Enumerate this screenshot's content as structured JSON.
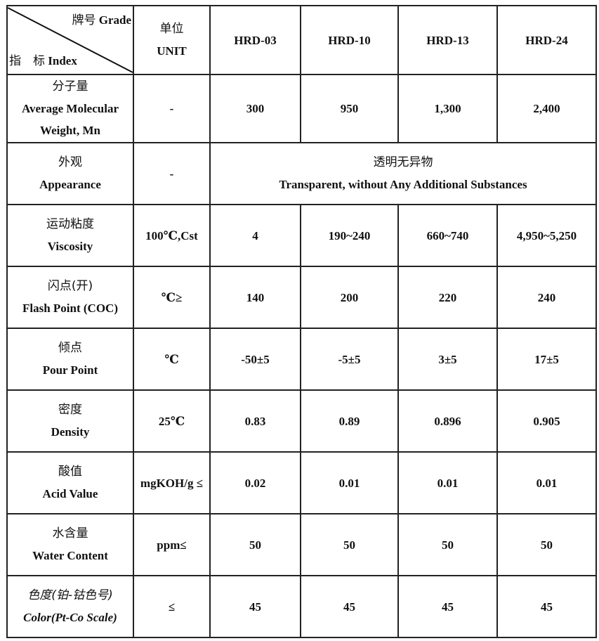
{
  "header": {
    "corner_top": {
      "zh": "牌号",
      "en": "Grade"
    },
    "corner_bottom": {
      "zh": "指　标",
      "en": "Index"
    },
    "unit": {
      "zh": "单位",
      "en": "UNIT"
    },
    "grades": [
      "HRD-03",
      "HRD-10",
      "HRD-13",
      "HRD-24"
    ]
  },
  "rows": [
    {
      "zh": "分子量",
      "en": "Average Molecular Weight, Mn",
      "unit": "-",
      "values": [
        "300",
        "950",
        "1,300",
        "2,400"
      ]
    },
    {
      "zh": "外观",
      "en": "Appearance",
      "unit": "-",
      "merged": {
        "zh": "透明无异物",
        "en": "Transparent, without Any Additional Substances"
      }
    },
    {
      "zh": "运动粘度",
      "en": "Viscosity",
      "unit": "100℃,Cst",
      "values": [
        "4",
        "190~240",
        "660~740",
        "4,950~5,250"
      ]
    },
    {
      "zh": "闪点(开)",
      "en": "Flash Point (COC)",
      "unit": "℃≥",
      "values": [
        "140",
        "200",
        "220",
        "240"
      ]
    },
    {
      "zh": "倾点",
      "en": "Pour Point",
      "unit": "℃",
      "values": [
        "-50±5",
        "-5±5",
        "3±5",
        "17±5"
      ]
    },
    {
      "zh": "密度",
      "en": "Density",
      "unit": "25℃",
      "values": [
        "0.83",
        "0.89",
        "0.896",
        "0.905"
      ]
    },
    {
      "zh": "酸值",
      "en": "Acid Value",
      "unit": "mgKOH/g ≤",
      "values": [
        "0.02",
        "0.01",
        "0.01",
        "0.01"
      ]
    },
    {
      "zh": "水含量",
      "en": "Water Content",
      "unit": "ppm≤",
      "values": [
        "50",
        "50",
        "50",
        "50"
      ]
    },
    {
      "zh": "色度(铂-钴色号)",
      "en": "Color(Pt-Co Scale)",
      "unit": "≤",
      "values": [
        "45",
        "45",
        "45",
        "45"
      ],
      "italic_label": true
    }
  ]
}
